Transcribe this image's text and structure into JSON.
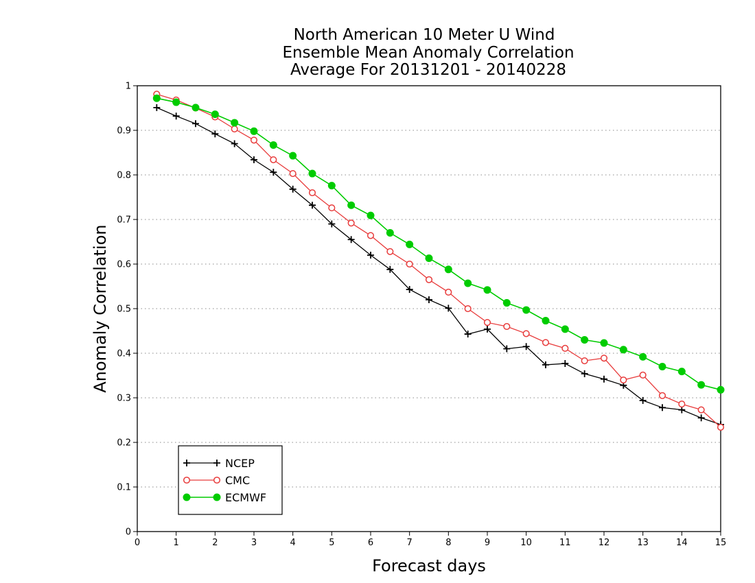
{
  "chart_data": {
    "type": "line",
    "title": [
      "North American 10 Meter U Wind",
      "Ensemble Mean Anomaly Correlation",
      "Average For 20131201 - 20140228"
    ],
    "xlabel": "Forecast days",
    "ylabel": "Anomaly Correlation",
    "xlim": [
      0,
      15
    ],
    "ylim": [
      0,
      1
    ],
    "xticks": [
      "0",
      "1",
      "2",
      "3",
      "4",
      "5",
      "6",
      "7",
      "8",
      "9",
      "10",
      "11",
      "12",
      "13",
      "14",
      "15"
    ],
    "yticks": [
      "0",
      "0.1",
      "0.2",
      "0.3",
      "0.4",
      "0.5",
      "0.6",
      "0.7",
      "0.8",
      "0.9",
      "1"
    ],
    "grid": "horizontal dotted",
    "legend_position": "bottom-left",
    "x": [
      0.5,
      1,
      1.5,
      2,
      2.5,
      3,
      3.5,
      4,
      4.5,
      5,
      5.5,
      6,
      6.5,
      7,
      7.5,
      8,
      8.5,
      9,
      9.5,
      10,
      10.5,
      11,
      11.5,
      12,
      12.5,
      13,
      13.5,
      14,
      14.5,
      15
    ],
    "series": [
      {
        "name": "NCEP",
        "color": "#000000",
        "marker": "plus",
        "values": [
          0.951,
          0.932,
          0.915,
          0.892,
          0.87,
          0.834,
          0.806,
          0.768,
          0.732,
          0.69,
          0.655,
          0.62,
          0.588,
          0.543,
          0.52,
          0.501,
          0.443,
          0.454,
          0.41,
          0.415,
          0.374,
          0.377,
          0.354,
          0.342,
          0.328,
          0.294,
          0.278,
          0.273,
          0.255,
          0.24
        ]
      },
      {
        "name": "CMC",
        "color": "#e83c3c",
        "marker": "open-circle",
        "values": [
          0.981,
          0.968,
          0.95,
          0.93,
          0.903,
          0.878,
          0.834,
          0.803,
          0.76,
          0.726,
          0.692,
          0.664,
          0.628,
          0.6,
          0.565,
          0.537,
          0.5,
          0.469,
          0.46,
          0.444,
          0.424,
          0.411,
          0.383,
          0.389,
          0.34,
          0.351,
          0.305,
          0.286,
          0.273,
          0.234
        ]
      },
      {
        "name": "ECMWF",
        "color": "#00cc00",
        "marker": "filled-circle",
        "values": [
          0.972,
          0.963,
          0.951,
          0.936,
          0.917,
          0.898,
          0.867,
          0.843,
          0.803,
          0.776,
          0.732,
          0.709,
          0.67,
          0.644,
          0.613,
          0.588,
          0.557,
          0.542,
          0.513,
          0.497,
          0.473,
          0.454,
          0.43,
          0.423,
          0.408,
          0.392,
          0.37,
          0.359,
          0.329,
          0.318
        ]
      }
    ]
  }
}
